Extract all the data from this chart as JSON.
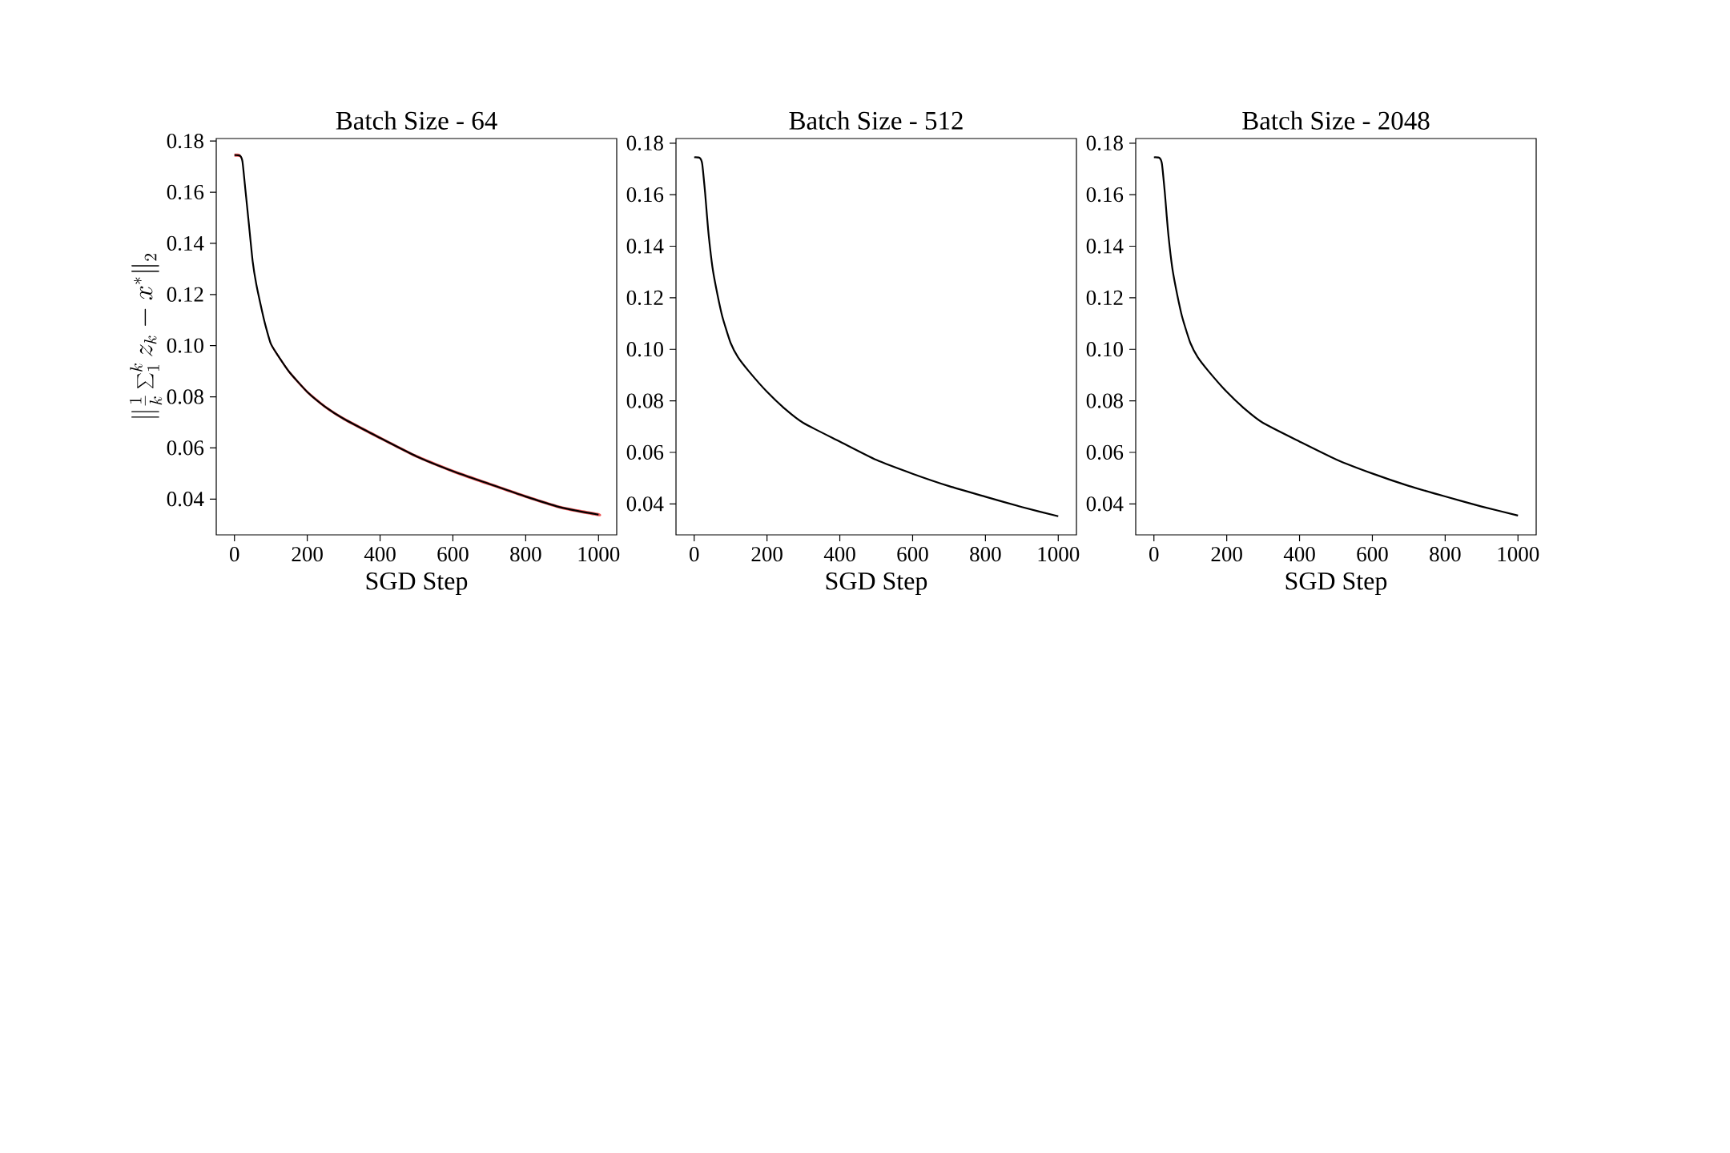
{
  "chart_data": [
    {
      "type": "line",
      "title": "Batch Size - 64",
      "xlabel": "SGD Step",
      "ylabel": "\\|\\frac{1}{k}\\sum_1^k z_k - x^*\\|_2",
      "x": [
        0,
        15,
        22,
        30,
        35,
        40,
        50,
        60,
        75,
        85,
        100,
        120,
        150,
        200,
        250,
        300,
        400,
        500,
        600,
        700,
        800,
        900,
        1000
      ],
      "xlim": [
        -50,
        1050
      ],
      "ylim": [
        0.026,
        0.181
      ],
      "xticks": [
        0,
        200,
        400,
        600,
        800,
        1000
      ],
      "yticks": [
        {
          "value": 0.04,
          "label": "0.04"
        },
        {
          "value": 0.06,
          "label": "0.06"
        },
        {
          "value": 0.08,
          "label": "0.08"
        },
        {
          "value": 0.1,
          "label": "0.10"
        },
        {
          "value": 0.12,
          "label": "0.12"
        },
        {
          "value": 0.14,
          "label": "0.14"
        },
        {
          "value": 0.16,
          "label": "0.16"
        },
        {
          "value": 0.18,
          "label": "0.18"
        }
      ],
      "grid": false,
      "series": [
        {
          "color": "#000000",
          "values": [
            0.1745,
            0.1743,
            0.172,
            0.161,
            0.154,
            0.147,
            0.133,
            0.124,
            0.114,
            0.108,
            0.1007,
            0.096,
            0.0898,
            0.0819,
            0.076,
            0.0714,
            0.0639,
            0.0567,
            0.0509,
            0.0459,
            0.041,
            0.0366,
            0.0339
          ],
          "lower": [
            0.1739,
            0.1737,
            0.1714,
            0.1604,
            0.1534,
            0.1464,
            0.1324,
            0.1234,
            0.1134,
            0.1074,
            0.1001,
            0.0954,
            0.0892,
            0.0813,
            0.0754,
            0.0708,
            0.0633,
            0.0561,
            0.0503,
            0.0453,
            0.0404,
            0.036,
            0.0333
          ],
          "upper": [
            0.1751,
            0.1749,
            0.1726,
            0.1616,
            0.1546,
            0.1476,
            0.1336,
            0.1246,
            0.1146,
            0.1086,
            0.1013,
            0.0966,
            0.0904,
            0.0825,
            0.0766,
            0.072,
            0.0645,
            0.0573,
            0.0515,
            0.0465,
            0.0416,
            0.0372,
            0.0345
          ]
        }
      ]
    },
    {
      "type": "line",
      "title": "Batch Size - 512",
      "xlabel": "SGD Step",
      "x": [
        0,
        15,
        22,
        30,
        35,
        40,
        50,
        60,
        75,
        85,
        100,
        120,
        150,
        200,
        250,
        300,
        400,
        500,
        600,
        700,
        800,
        900,
        1000
      ],
      "xlim": [
        -50,
        1050
      ],
      "ylim": [
        0.028,
        0.1818
      ],
      "xticks": [
        0,
        200,
        400,
        600,
        800,
        1000
      ],
      "yticks": [
        {
          "value": 0.04,
          "label": "0.04"
        },
        {
          "value": 0.06,
          "label": "0.06"
        },
        {
          "value": 0.08,
          "label": "0.08"
        },
        {
          "value": 0.1,
          "label": "0.10"
        },
        {
          "value": 0.12,
          "label": "0.12"
        },
        {
          "value": 0.14,
          "label": "0.14"
        },
        {
          "value": 0.16,
          "label": "0.16"
        },
        {
          "value": 0.18,
          "label": "0.18"
        }
      ],
      "grid": false,
      "series": [
        {
          "color": "#000000",
          "values": [
            0.1745,
            0.1743,
            0.172,
            0.1607,
            0.152,
            0.144,
            0.132,
            0.124,
            0.114,
            0.109,
            0.1025,
            0.097,
            0.0915,
            0.0835,
            0.0768,
            0.0714,
            0.0642,
            0.0571,
            0.0517,
            0.0469,
            0.0428,
            0.0388,
            0.0352
          ]
        }
      ]
    },
    {
      "type": "line",
      "title": "Batch Size - 2048",
      "xlabel": "SGD Step",
      "x": [
        0,
        15,
        22,
        30,
        35,
        40,
        50,
        60,
        75,
        85,
        100,
        120,
        150,
        200,
        250,
        300,
        400,
        500,
        600,
        700,
        800,
        900,
        1000
      ],
      "xlim": [
        -50,
        1050
      ],
      "ylim": [
        0.028,
        0.1818
      ],
      "xticks": [
        0,
        200,
        400,
        600,
        800,
        1000
      ],
      "yticks": [
        {
          "value": 0.04,
          "label": "0.04"
        },
        {
          "value": 0.06,
          "label": "0.06"
        },
        {
          "value": 0.08,
          "label": "0.08"
        },
        {
          "value": 0.1,
          "label": "0.10"
        },
        {
          "value": 0.12,
          "label": "0.12"
        },
        {
          "value": 0.14,
          "label": "0.14"
        },
        {
          "value": 0.16,
          "label": "0.16"
        },
        {
          "value": 0.18,
          "label": "0.18"
        }
      ],
      "grid": false,
      "series": [
        {
          "color": "#000000",
          "values": [
            0.1745,
            0.1743,
            0.172,
            0.1607,
            0.152,
            0.144,
            0.132,
            0.124,
            0.114,
            0.109,
            0.1025,
            0.097,
            0.0915,
            0.0835,
            0.0768,
            0.0714,
            0.0642,
            0.0573,
            0.0518,
            0.047,
            0.0429,
            0.039,
            0.0355
          ]
        }
      ]
    }
  ]
}
